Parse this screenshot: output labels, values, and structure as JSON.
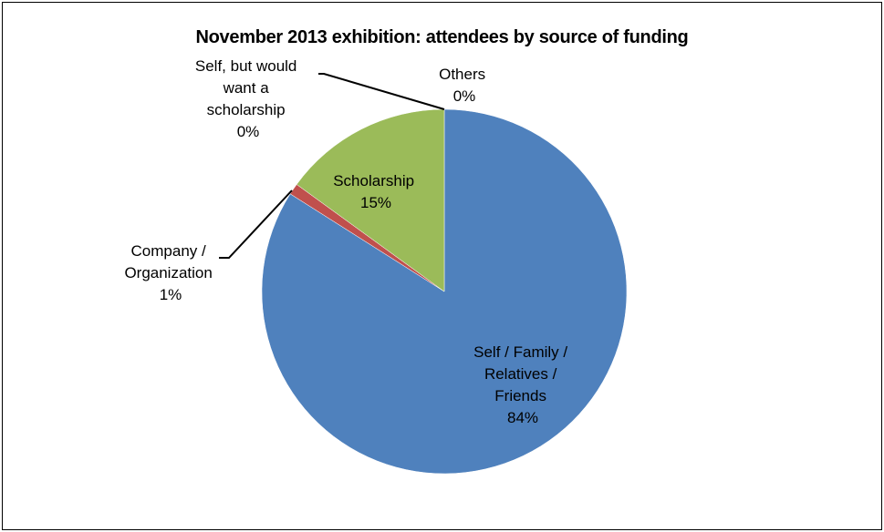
{
  "chart_data": {
    "type": "pie",
    "title": "November 2013 exhibition: attendees by source of funding",
    "slices": [
      {
        "key": "self_family",
        "label_lines": [
          "Self / Family /",
          "Relatives /",
          "Friends"
        ],
        "pct_text": "84%",
        "value": 84,
        "color": "#4F81BD"
      },
      {
        "key": "company",
        "label_lines": [
          "Company /",
          "Organization"
        ],
        "pct_text": "1%",
        "value": 1,
        "color": "#C0504D"
      },
      {
        "key": "scholarship",
        "label_lines": [
          "Scholarship"
        ],
        "pct_text": "15%",
        "value": 15,
        "color": "#9BBB59"
      },
      {
        "key": "self_would_want",
        "label_lines": [
          "Self, but would",
          "want a",
          "scholarship"
        ],
        "pct_text": "0%",
        "value": 0,
        "color": "#8064A2"
      },
      {
        "key": "others",
        "label_lines": [
          "Others"
        ],
        "pct_text": "0%",
        "value": 0,
        "color": "#4BACC6"
      }
    ]
  }
}
